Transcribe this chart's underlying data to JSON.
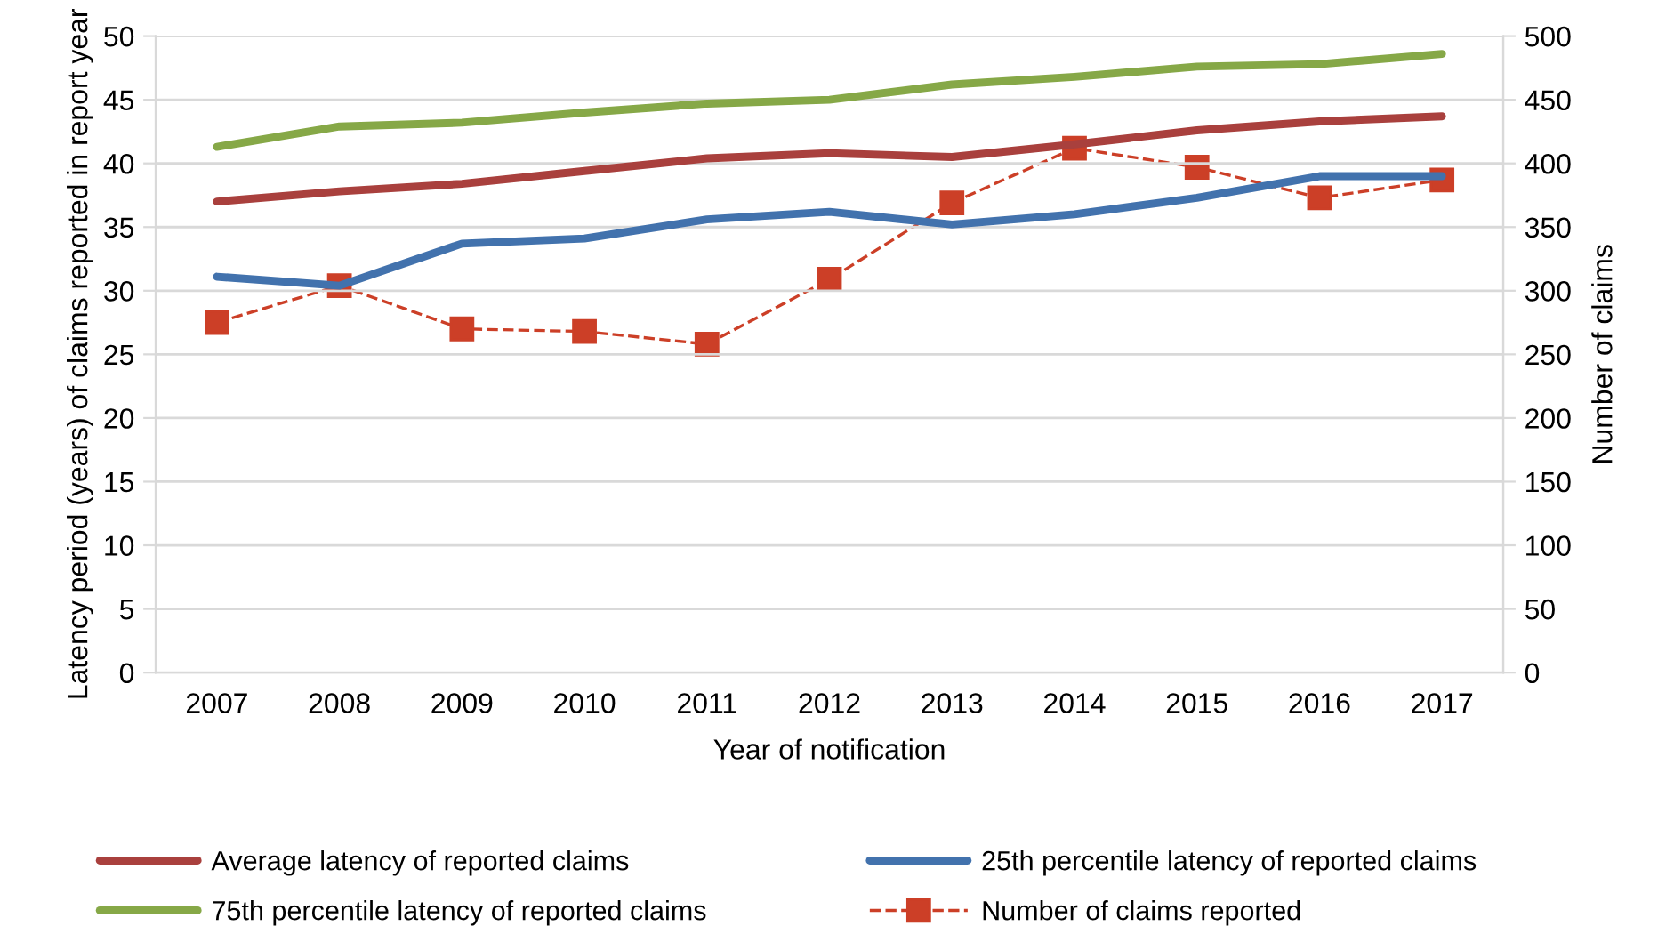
{
  "chart_data": {
    "type": "line",
    "xlabel": "Year of notification",
    "ylabel": "Latency period (years) of claims reported in report year",
    "y2label": "Number of claims",
    "categories": [
      "2007",
      "2008",
      "2009",
      "2010",
      "2011",
      "2012",
      "2013",
      "2014",
      "2015",
      "2016",
      "2017"
    ],
    "series": [
      {
        "name": "Average latency of reported claims",
        "color": "#a9403d",
        "values": [
          37.0,
          37.8,
          38.4,
          39.4,
          40.4,
          40.8,
          40.5,
          41.5,
          42.6,
          43.3,
          43.7
        ]
      },
      {
        "name": "25th percentile latency of reported claims",
        "color": "#4272ad",
        "values": [
          31.1,
          30.4,
          33.7,
          34.1,
          35.6,
          36.2,
          35.2,
          36.0,
          37.3,
          39.0,
          39.0
        ]
      },
      {
        "name": "75th percentile latency of reported claims",
        "color": "#86a847",
        "values": [
          41.3,
          42.9,
          43.2,
          44.0,
          44.7,
          45.0,
          46.2,
          46.8,
          47.6,
          47.8,
          48.6
        ]
      },
      {
        "name": "Number of claims reported",
        "color": "#cc3f27",
        "axis": "y2",
        "marker": "square",
        "line_style": "dashed",
        "values": [
          275,
          304,
          270,
          268,
          258,
          309,
          369,
          412,
          397,
          373,
          387
        ]
      }
    ],
    "ylim": [
      0,
      50
    ],
    "yticks": [
      0,
      5,
      10,
      15,
      20,
      25,
      30,
      35,
      40,
      45,
      50
    ],
    "y2lim": [
      0,
      500
    ],
    "y2ticks": [
      0,
      50,
      100,
      150,
      200,
      250,
      300,
      350,
      400,
      450,
      500
    ],
    "grid": "y",
    "legend": "bottom"
  }
}
